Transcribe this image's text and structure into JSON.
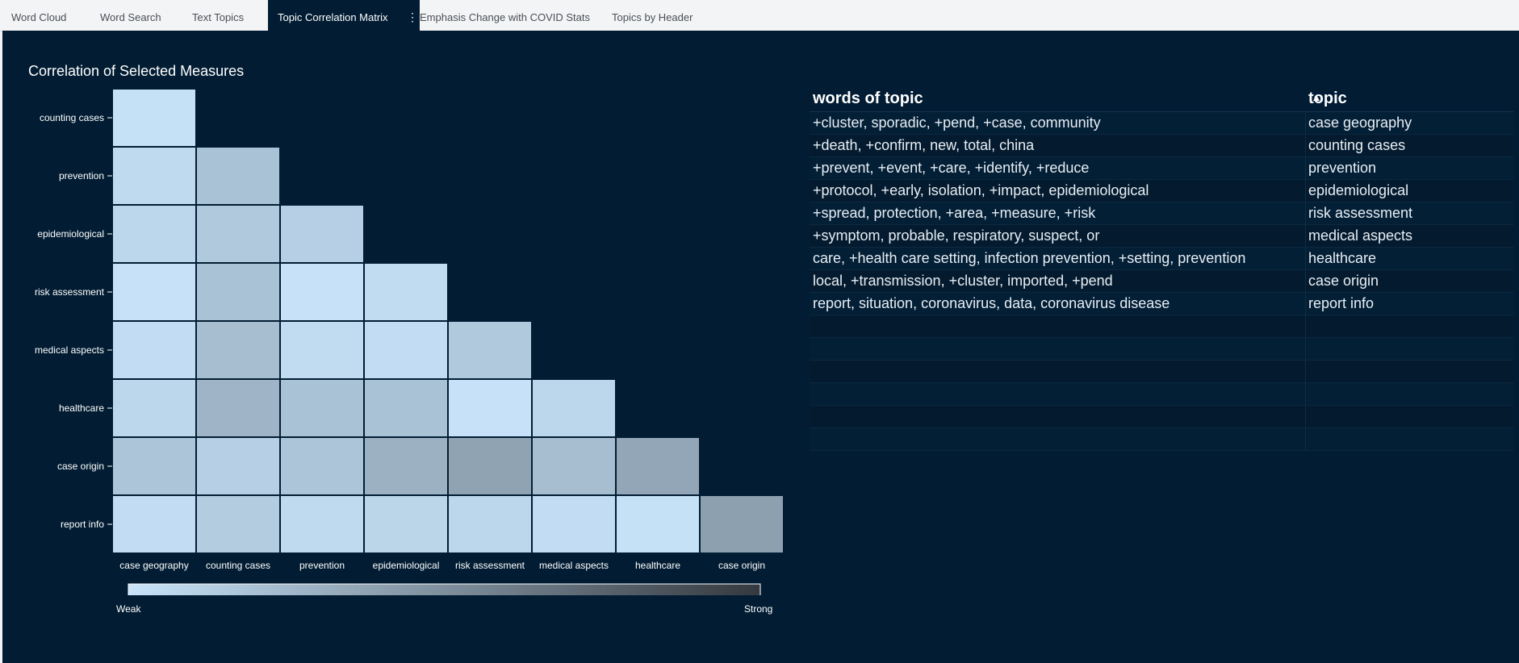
{
  "tabs": [
    {
      "label": "Word Cloud",
      "active": false
    },
    {
      "label": "Word Search",
      "active": false
    },
    {
      "label": "Text Topics",
      "active": false
    },
    {
      "label": "Topic Correlation Matrix",
      "active": true
    },
    {
      "label": "Emphasis Change with COVID Stats",
      "active": false
    },
    {
      "label": "Topics by Header",
      "active": false
    }
  ],
  "active_tab_more_icon": "vertical-ellipsis-icon",
  "chart_data": {
    "type": "heatmap",
    "title": "Correlation of Selected Measures",
    "rows": [
      "counting cases",
      "prevention",
      "epidemiological",
      "risk assessment",
      "medical aspects",
      "healthcare",
      "case origin",
      "report info"
    ],
    "columns": [
      "case geography",
      "counting cases",
      "prevention",
      "epidemiological",
      "risk assessment",
      "medical aspects",
      "healthcare",
      "case origin"
    ],
    "matrix": [
      [
        0.02
      ],
      [
        0.06,
        0.2
      ],
      [
        0.08,
        0.16,
        0.12
      ],
      [
        0.01,
        0.2,
        0.01,
        0.05
      ],
      [
        0.04,
        0.22,
        0.05,
        0.04,
        0.16
      ],
      [
        0.08,
        0.28,
        0.2,
        0.2,
        0.01,
        0.08
      ],
      [
        0.18,
        0.12,
        0.18,
        0.3,
        0.38,
        0.22,
        0.36
      ],
      [
        0.04,
        0.14,
        0.06,
        0.09,
        0.08,
        0.04,
        0.02,
        0.4
      ]
    ],
    "scale": {
      "min_label": "Weak",
      "max_label": "Strong",
      "min_color": "#c8e4fa",
      "max_color": "#34393f"
    },
    "grid": true
  },
  "table": {
    "columns": [
      {
        "label": "words of topic",
        "sorted": "ascending"
      },
      {
        "label": "topic"
      }
    ],
    "rows": [
      {
        "words": "+cluster, sporadic, +pend, +case, community",
        "topic": "case geography"
      },
      {
        "words": "+death, +confirm, new, total, china",
        "topic": "counting cases"
      },
      {
        "words": "+prevent, +event, +care, +identify, +reduce",
        "topic": "prevention"
      },
      {
        "words": "+protocol, +early, isolation, +impact, epidemiological",
        "topic": "epidemiological"
      },
      {
        "words": "+spread, protection, +area, +measure, +risk",
        "topic": "risk assessment"
      },
      {
        "words": "+symptom, probable, respiratory, suspect, or",
        "topic": "medical aspects"
      },
      {
        "words": "care, +health care setting, infection prevention, +setting, prevention",
        "topic": "healthcare"
      },
      {
        "words": "local, +transmission, +cluster, imported, +pend",
        "topic": "case origin"
      },
      {
        "words": "report, situation, coronavirus, data, coronavirus disease",
        "topic": "report info"
      }
    ],
    "empty_rows": 6
  },
  "colors": {
    "background": "#021d33",
    "tab_bar": "#f3f4f6",
    "cell_border": "#021d33"
  }
}
